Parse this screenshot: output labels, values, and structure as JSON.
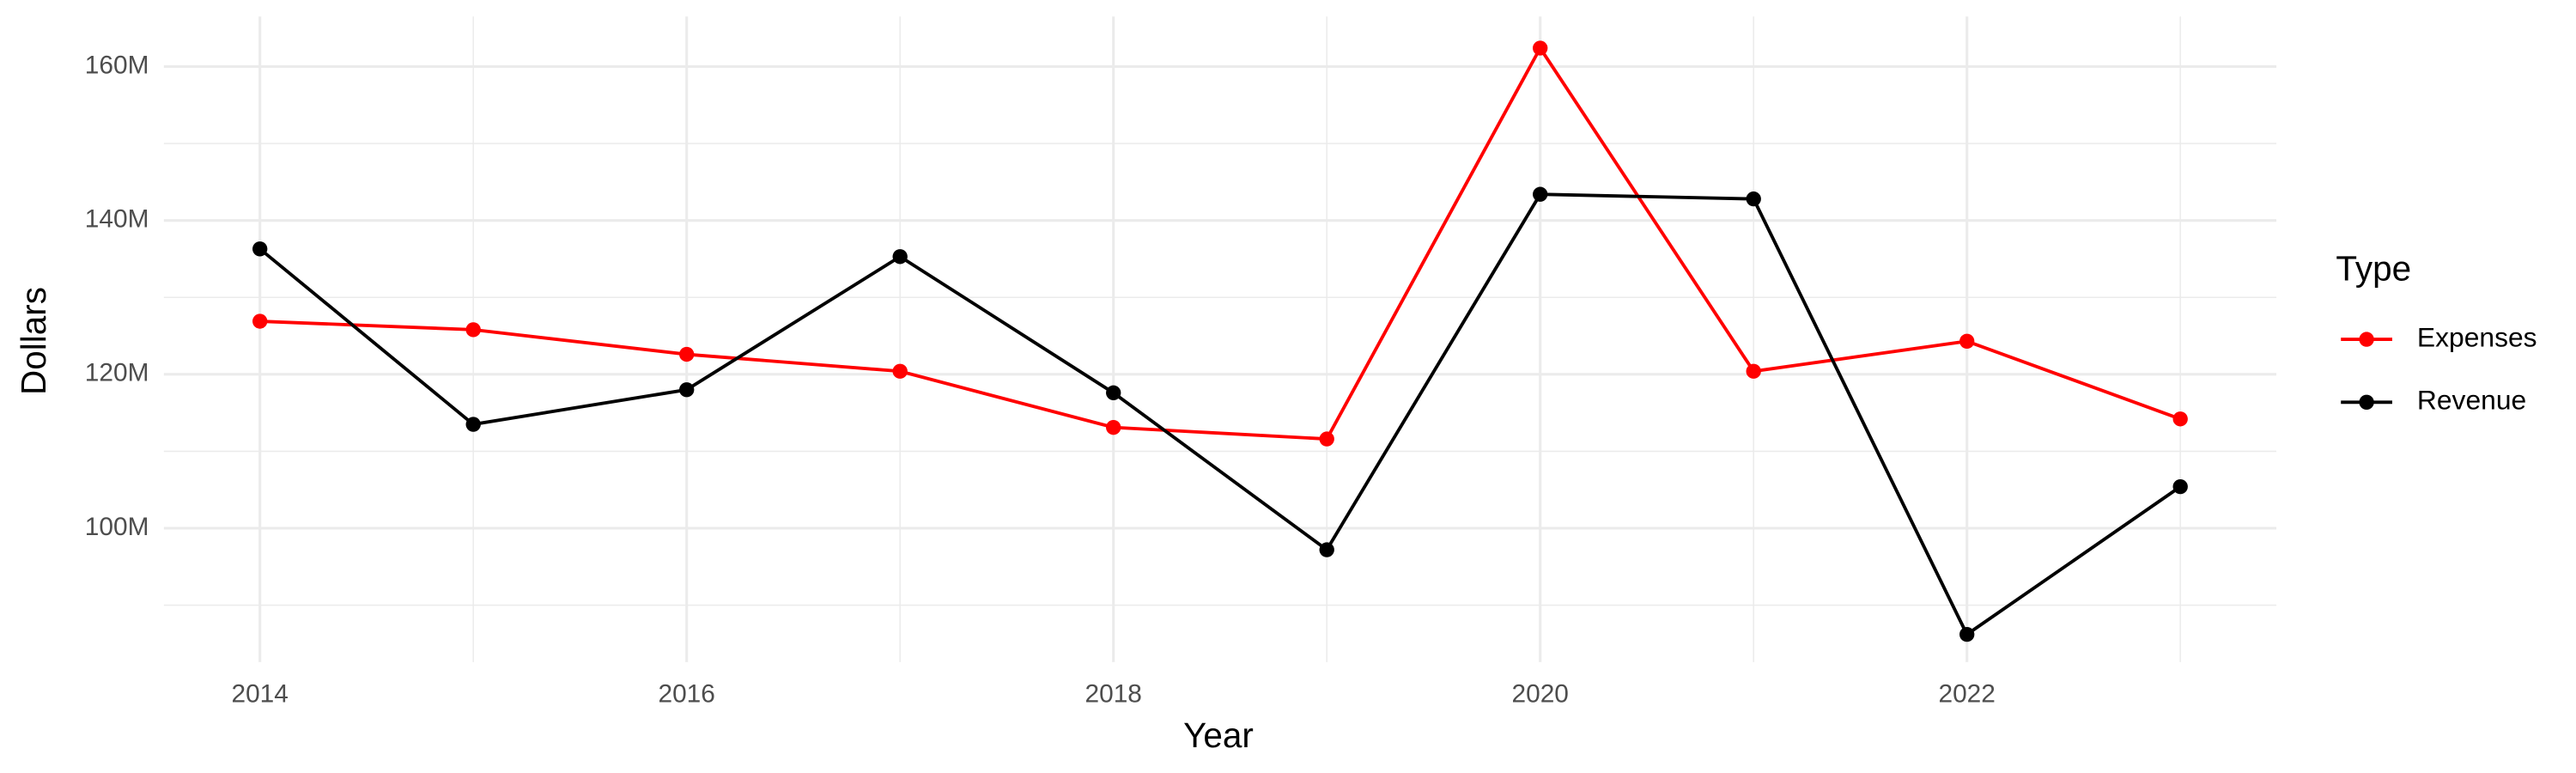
{
  "chart_data": {
    "type": "line",
    "x_label": "Year",
    "y_label": "Dollars",
    "x": [
      2014,
      2015,
      2016,
      2017,
      2018,
      2019,
      2020,
      2021,
      2022,
      2023
    ],
    "series": [
      {
        "name": "Expenses",
        "color": "#ff0000",
        "values": [
          126900000,
          125800000,
          122600000,
          120400000,
          113100000,
          111600000,
          162400000,
          120400000,
          124300000,
          114200000
        ]
      },
      {
        "name": "Revenue",
        "color": "#000000",
        "values": [
          136300000,
          113500000,
          118000000,
          135300000,
          117600000,
          97200000,
          143400000,
          142800000,
          86200000,
          105400000
        ]
      }
    ],
    "xlim": [
      2013.55,
      2023.45
    ],
    "ylim": [
      82600000,
      166500000
    ],
    "xticks": [
      2014,
      2016,
      2018,
      2020,
      2022
    ],
    "xminorticks": [
      2015,
      2017,
      2019,
      2021,
      2023
    ],
    "yticks": [
      {
        "value": 100000000,
        "label": "100M"
      },
      {
        "value": 120000000,
        "label": "120M"
      },
      {
        "value": 140000000,
        "label": "140M"
      },
      {
        "value": 160000000,
        "label": "160M"
      }
    ],
    "yminorticks": [
      90000000,
      110000000,
      130000000,
      150000000
    ],
    "grid": true,
    "legend_title": "Type",
    "legend_position": "right"
  }
}
